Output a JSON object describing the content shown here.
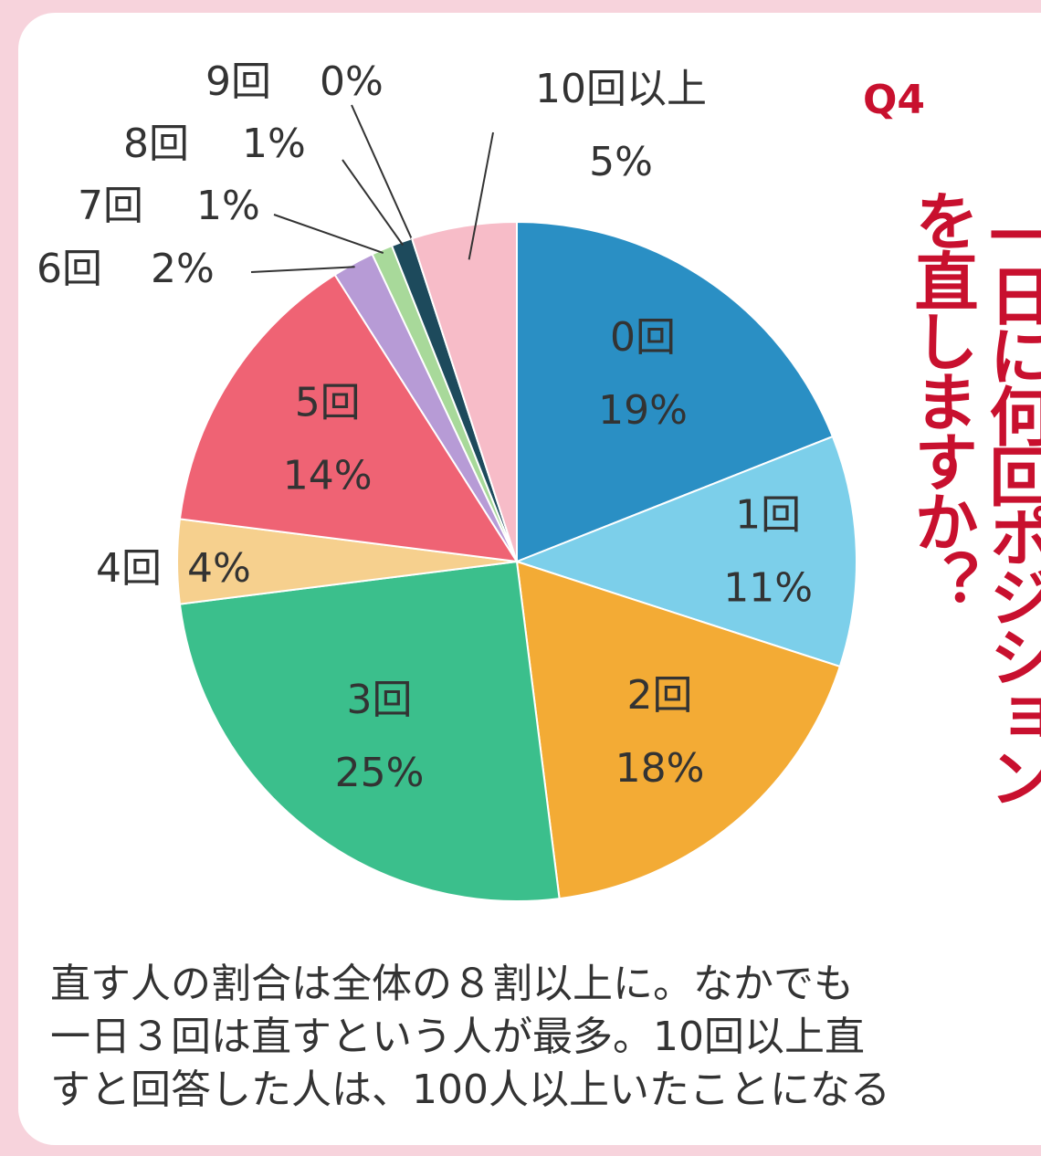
{
  "chart_data": {
    "type": "pie",
    "badge": "Q4",
    "title_lines": [
      "一日に何回ポジション",
      "を直しますか？"
    ],
    "categories": [
      "0回",
      "1回",
      "2回",
      "3回",
      "4回",
      "5回",
      "6回",
      "7回",
      "8回",
      "9回",
      "10回以上"
    ],
    "values": [
      19,
      11,
      18,
      25,
      4,
      14,
      2,
      1,
      1,
      0,
      5
    ],
    "value_labels": [
      "19%",
      "11%",
      "18%",
      "25%",
      "4%",
      "14%",
      "2%",
      "1%",
      "1%",
      "0%",
      "5%"
    ],
    "colors": [
      "#2a8fc4",
      "#7ccfea",
      "#f3ab35",
      "#3bbf8c",
      "#f6d08e",
      "#ef6374",
      "#b79bd6",
      "#a8d99a",
      "#1d4a5c",
      "#555555",
      "#f7bcc8"
    ],
    "caption_lines": [
      "直す人の割合は全体の８割以上に。なかでも",
      "一日３回は直すという人が最多。10回以上直",
      "すと回答した人は、100人以上いたことになる"
    ]
  }
}
